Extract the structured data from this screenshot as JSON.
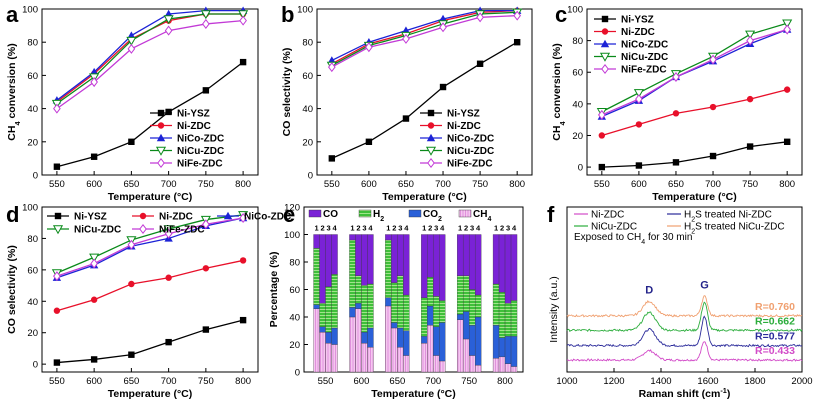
{
  "chart_data": [
    {
      "panel": "a",
      "type": "line",
      "title": "",
      "xlabel": "Temperature (°C)",
      "ylabel": "CH4 conversion (%)",
      "xlim": [
        530,
        820
      ],
      "ylim": [
        0,
        100
      ],
      "xticks": [
        550,
        600,
        650,
        700,
        750,
        800
      ],
      "yticks": [
        0,
        20,
        40,
        60,
        80,
        100
      ],
      "legend_position": "bottom-right",
      "x": [
        550,
        600,
        650,
        700,
        750,
        800
      ],
      "series": [
        {
          "name": "Ni-YSZ",
          "color": "#000000",
          "marker": "square",
          "values": [
            5,
            11,
            20,
            38,
            51,
            68
          ]
        },
        {
          "name": "Ni-ZDC",
          "color": "#e8102a",
          "marker": "circle",
          "values": [
            44,
            61,
            82,
            93,
            97,
            97
          ]
        },
        {
          "name": "NiCo-ZDC",
          "color": "#1c23d6",
          "marker": "triangle-up",
          "values": [
            45,
            62,
            84,
            97,
            99,
            99
          ]
        },
        {
          "name": "NiCu-ZDC",
          "color": "#0a8a1a",
          "marker": "triangle-down",
          "values": [
            43,
            59,
            81,
            94,
            97,
            97
          ]
        },
        {
          "name": "NiFe-ZDC",
          "color": "#c23ad6",
          "marker": "diamond",
          "values": [
            40,
            56,
            76,
            87,
            91,
            93
          ]
        }
      ]
    },
    {
      "panel": "b",
      "type": "line",
      "title": "",
      "xlabel": "Temperature (°C)",
      "ylabel": "CO selectivity (%)",
      "xlim": [
        530,
        820
      ],
      "ylim": [
        0,
        100
      ],
      "xticks": [
        550,
        600,
        650,
        700,
        750,
        800
      ],
      "yticks": [
        0,
        20,
        40,
        60,
        80,
        100
      ],
      "legend_position": "bottom-right",
      "x": [
        550,
        600,
        650,
        700,
        750,
        800
      ],
      "series": [
        {
          "name": "Ni-YSZ",
          "color": "#000000",
          "marker": "square",
          "values": [
            10,
            20,
            34,
            53,
            67,
            80
          ]
        },
        {
          "name": "Ni-ZDC",
          "color": "#e8102a",
          "marker": "circle",
          "values": [
            67,
            79,
            85,
            93,
            98,
            99
          ]
        },
        {
          "name": "NiCo-ZDC",
          "color": "#1c23d6",
          "marker": "triangle-up",
          "values": [
            69,
            80,
            87,
            94,
            99,
            99
          ]
        },
        {
          "name": "NiCu-ZDC",
          "color": "#0a8a1a",
          "marker": "triangle-down",
          "values": [
            66,
            78,
            84,
            91,
            97,
            98
          ]
        },
        {
          "name": "NiFe-ZDC",
          "color": "#c23ad6",
          "marker": "diamond",
          "values": [
            65,
            77,
            82,
            89,
            95,
            96
          ]
        }
      ]
    },
    {
      "panel": "c",
      "type": "line",
      "title": "",
      "xlabel": "Temperature (°C)",
      "ylabel": "CH4 conversion (%)",
      "xlim": [
        530,
        820
      ],
      "ylim": [
        -5,
        100
      ],
      "xticks": [
        550,
        600,
        650,
        700,
        750,
        800
      ],
      "yticks": [
        0,
        20,
        40,
        60,
        80,
        100
      ],
      "legend_position": "top-left",
      "x": [
        550,
        600,
        650,
        700,
        750,
        800
      ],
      "series": [
        {
          "name": "Ni-YSZ",
          "color": "#000000",
          "marker": "square",
          "values": [
            0,
            1,
            3,
            7,
            13,
            16
          ]
        },
        {
          "name": "Ni-ZDC",
          "color": "#e8102a",
          "marker": "circle",
          "values": [
            20,
            27,
            34,
            38,
            43,
            49
          ]
        },
        {
          "name": "NiCo-ZDC",
          "color": "#1c23d6",
          "marker": "triangle-up",
          "values": [
            32,
            42,
            57,
            67,
            78,
            87
          ]
        },
        {
          "name": "NiCu-ZDC",
          "color": "#0a8a1a",
          "marker": "triangle-down",
          "values": [
            35,
            47,
            59,
            70,
            84,
            91
          ]
        },
        {
          "name": "NiFe-ZDC",
          "color": "#c23ad6",
          "marker": "diamond",
          "values": [
            33,
            43,
            57,
            68,
            80,
            87
          ]
        }
      ]
    },
    {
      "panel": "d",
      "type": "line",
      "title": "",
      "xlabel": "Temperature (°C)",
      "ylabel": "CO selectivity (%)",
      "xlim": [
        530,
        820
      ],
      "ylim": [
        -5,
        100
      ],
      "xticks": [
        550,
        600,
        650,
        700,
        750,
        800
      ],
      "yticks": [
        0,
        20,
        40,
        60,
        80,
        100
      ],
      "legend_position": "top",
      "x": [
        550,
        600,
        650,
        700,
        750,
        800
      ],
      "series": [
        {
          "name": "Ni-YSZ",
          "color": "#000000",
          "marker": "square",
          "values": [
            1,
            3,
            6,
            14,
            22,
            28
          ]
        },
        {
          "name": "Ni-ZDC",
          "color": "#e8102a",
          "marker": "circle",
          "values": [
            34,
            41,
            51,
            55,
            61,
            66
          ]
        },
        {
          "name": "NiCo-ZDC",
          "color": "#1c23d6",
          "marker": "triangle-up",
          "values": [
            55,
            63,
            75,
            80,
            88,
            93
          ]
        },
        {
          "name": "NiCu-ZDC",
          "color": "#0a8a1a",
          "marker": "triangle-down",
          "values": [
            58,
            68,
            79,
            86,
            92,
            95
          ]
        },
        {
          "name": "NiFe-ZDC",
          "color": "#c23ad6",
          "marker": "diamond",
          "values": [
            56,
            64,
            76,
            83,
            89,
            93
          ]
        }
      ]
    },
    {
      "panel": "e",
      "type": "bar",
      "stacked": true,
      "title": "",
      "xlabel": "Temperature (°C)",
      "ylabel": "Percentage (%)",
      "xlim": [
        520,
        825
      ],
      "ylim": [
        0,
        120
      ],
      "xticks": [
        550,
        600,
        650,
        700,
        750,
        800
      ],
      "yticks": [
        0,
        20,
        40,
        60,
        80,
        100,
        120
      ],
      "bar_labels": [
        "1",
        "2",
        "3",
        "4"
      ],
      "legend": [
        {
          "name": "CO",
          "color": "#7a22d6"
        },
        {
          "name": "H2",
          "color": "#3fbf3a"
        },
        {
          "name": "CO2",
          "color": "#2a60d8"
        },
        {
          "name": "CH4",
          "color": "#f2b8ea"
        }
      ],
      "groups": [
        {
          "x": 550,
          "bars": [
            {
              "CH4": 46,
              "CO2": 3,
              "H2": 41,
              "CO": 10
            },
            {
              "CH4": 29,
              "CO2": 4,
              "H2": 17,
              "CO": 50
            },
            {
              "CH4": 21,
              "CO2": 8,
              "H2": 33,
              "CO": 38
            },
            {
              "CH4": 20,
              "CO2": 12,
              "H2": 39,
              "CO": 29
            }
          ]
        },
        {
          "x": 600,
          "bars": [
            {
              "CH4": 40,
              "CO2": 7,
              "H2": 49,
              "CO": 4
            },
            {
              "CH4": 46,
              "CO2": 4,
              "H2": 20,
              "CO": 30
            },
            {
              "CH4": 21,
              "CO2": 8,
              "H2": 34,
              "CO": 37
            },
            {
              "CH4": 18,
              "CO2": 14,
              "H2": 32,
              "CO": 36
            }
          ]
        },
        {
          "x": 650,
          "bars": [
            {
              "CH4": 48,
              "CO2": 6,
              "H2": 42,
              "CO": 4
            },
            {
              "CH4": 32,
              "CO2": 4,
              "H2": 29,
              "CO": 35
            },
            {
              "CH4": 18,
              "CO2": 14,
              "H2": 38,
              "CO": 30
            },
            {
              "CH4": 12,
              "CO2": 18,
              "H2": 26,
              "CO": 44
            }
          ]
        },
        {
          "x": 700,
          "bars": [
            {
              "CH4": 21,
              "CO2": 5,
              "H2": 28,
              "CO": 46
            },
            {
              "CH4": 34,
              "CO2": 14,
              "H2": 21,
              "CO": 31
            },
            {
              "CH4": 12,
              "CO2": 21,
              "H2": 22,
              "CO": 45
            },
            {
              "CH4": 8,
              "CO2": 28,
              "H2": 16,
              "CO": 48
            }
          ]
        },
        {
          "x": 750,
          "bars": [
            {
              "CH4": 38,
              "CO2": 4,
              "H2": 28,
              "CO": 30
            },
            {
              "CH4": 24,
              "CO2": 20,
              "H2": 26,
              "CO": 30
            },
            {
              "CH4": 12,
              "CO2": 22,
              "H2": 26,
              "CO": 40
            },
            {
              "CH4": 5,
              "CO2": 35,
              "H2": 16,
              "CO": 44
            }
          ]
        },
        {
          "x": 800,
          "bars": [
            {
              "CH4": 10,
              "CO2": 24,
              "H2": 30,
              "CO": 36
            },
            {
              "CH4": 11,
              "CO2": 14,
              "H2": 33,
              "CO": 42
            },
            {
              "CH4": 6,
              "CO2": 20,
              "H2": 24,
              "CO": 50
            },
            {
              "CH4": 4,
              "CO2": 22,
              "H2": 26,
              "CO": 48
            }
          ]
        }
      ]
    },
    {
      "panel": "f",
      "type": "line",
      "title": "",
      "xlabel": "Raman shift (cm-1)",
      "ylabel": "Intensity (a.u.)",
      "xlim": [
        1000,
        2000
      ],
      "xticks": [
        1000,
        1200,
        1400,
        1600,
        1800,
        2000
      ],
      "legend": [
        {
          "name": "Ni-ZDC",
          "color": "#d24bc8"
        },
        {
          "name": "H2S treated  Ni-ZDC",
          "color": "#2a2a9a"
        },
        {
          "name": "NiCu-ZDC",
          "color": "#2cad3c"
        },
        {
          "name": "H2S treated  NiCu-ZDC",
          "color": "#f0a070"
        }
      ],
      "note": "Exposed to CH4 for 30 min",
      "peaks": [
        {
          "label": "D",
          "x": 1350
        },
        {
          "label": "G",
          "x": 1585
        }
      ],
      "series": [
        {
          "name": "Ni-ZDC",
          "color": "#d24bc8",
          "offset": 0.0,
          "D": 0.55,
          "G": 1.1,
          "ratio_label": "R=0.433"
        },
        {
          "name": "H2S treated  Ni-ZDC",
          "color": "#2a2a9a",
          "offset": 0.85,
          "D": 0.95,
          "G": 1.7,
          "ratio_label": "R=0.577"
        },
        {
          "name": "NiCu-ZDC",
          "color": "#2cad3c",
          "offset": 1.75,
          "D": 1.05,
          "G": 1.65,
          "ratio_label": "R=0.662"
        },
        {
          "name": "H2S treated  NiCu-ZDC",
          "color": "#f0a070",
          "offset": 2.6,
          "D": 0.85,
          "G": 1.15,
          "ratio_label": "R=0.760"
        }
      ]
    }
  ]
}
